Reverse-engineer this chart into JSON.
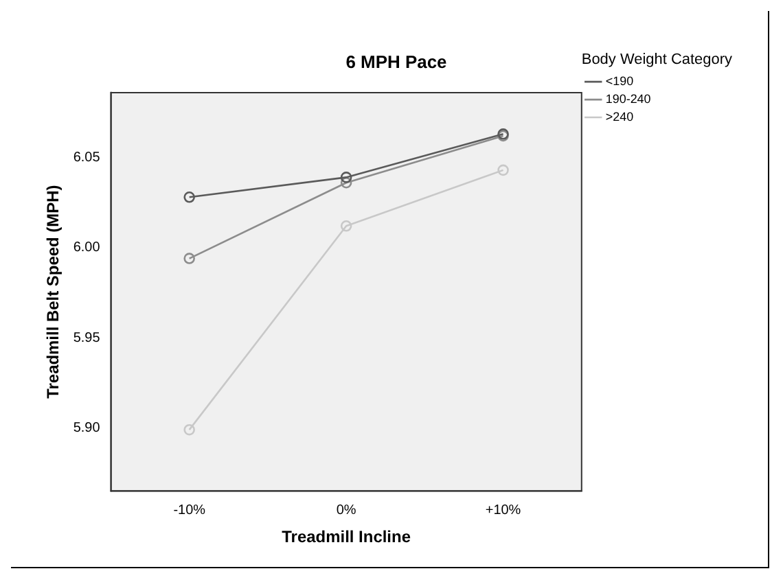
{
  "chart_data": {
    "type": "line",
    "title": "6 MPH Pace",
    "xlabel": "Treadmill Incline",
    "ylabel": "Treadmill Belt Speed (MPH)",
    "legend_title": "Body Weight Category",
    "categories": [
      "-10%",
      "0%",
      "+10%"
    ],
    "series": [
      {
        "name": "<190",
        "color": "#5a5a5a",
        "values": [
          6.028,
          6.039,
          6.063
        ]
      },
      {
        "name": "190-240",
        "color": "#8c8c8c",
        "values": [
          5.994,
          6.036,
          6.062
        ]
      },
      {
        "name": ">240",
        "color": "#c8c8c8",
        "values": [
          5.899,
          6.012,
          6.043
        ]
      }
    ],
    "ylim": [
      5.865,
      6.086
    ],
    "yticks": [
      {
        "value": 5.9,
        "label": "5.90"
      },
      {
        "value": 5.95,
        "label": "5.95"
      },
      {
        "value": 6.0,
        "label": "6.00"
      },
      {
        "value": 6.05,
        "label": "6.05"
      }
    ],
    "grid": false,
    "legend": "right",
    "marker": "circle",
    "line_style": "solid"
  }
}
